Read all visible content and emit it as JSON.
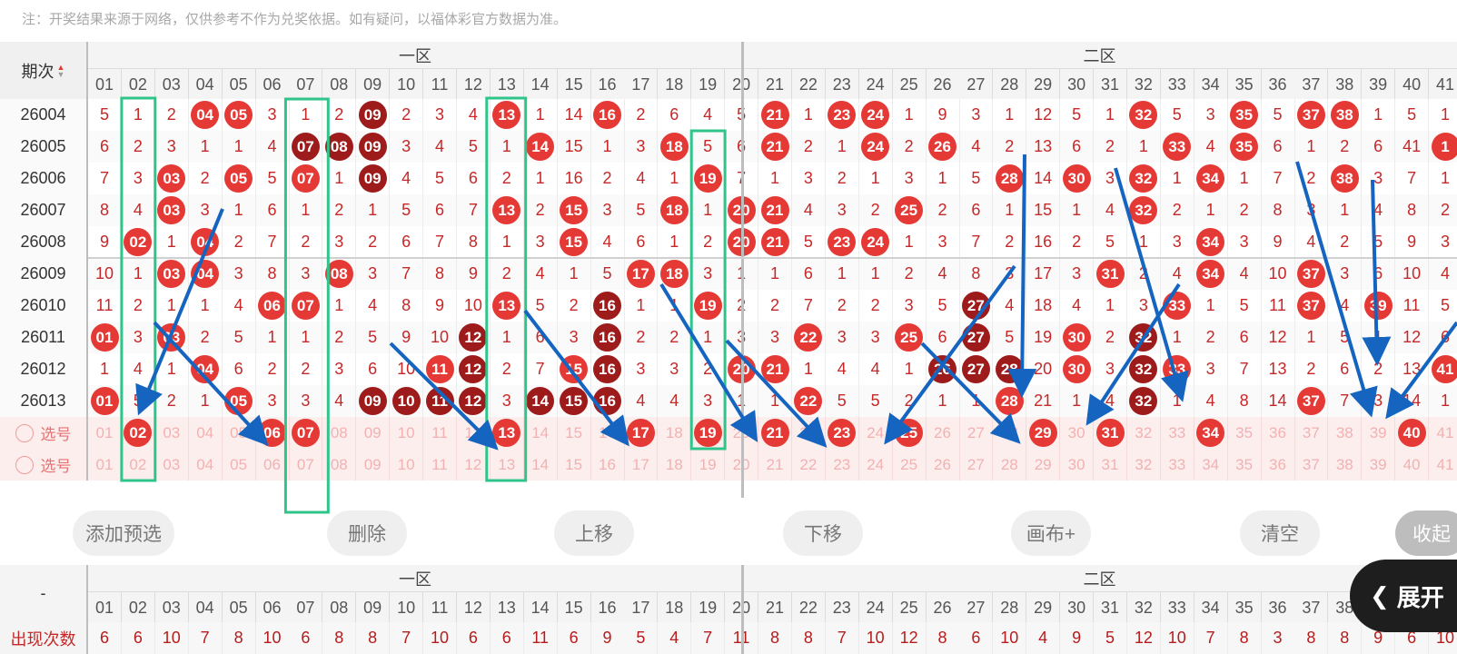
{
  "note": "注：开奖结果来源于网络，仅供参考不作为兑奖依据。如有疑问，以福体彩官方数据为准。",
  "header": {
    "issue_label": "期次",
    "zone1_label": "一区",
    "zone2_label": "二区",
    "numbers": [
      "01",
      "02",
      "03",
      "04",
      "05",
      "06",
      "07",
      "08",
      "09",
      "10",
      "11",
      "12",
      "13",
      "14",
      "15",
      "16",
      "17",
      "18",
      "19",
      "20",
      "21",
      "22",
      "23",
      "24",
      "25",
      "26",
      "27",
      "28",
      "29",
      "30",
      "31",
      "32",
      "33",
      "34",
      "35",
      "36",
      "37",
      "38",
      "39",
      "40",
      "41"
    ]
  },
  "rows": [
    {
      "issue": "26004",
      "cells": [
        "5",
        "1",
        "2",
        "04",
        "05",
        "3",
        "1",
        "2",
        "09",
        "2",
        "3",
        "4",
        "13",
        "1",
        "14",
        "16",
        "2",
        "6",
        "4",
        "5",
        "21",
        "1",
        "23",
        "24",
        "1",
        "9",
        "3",
        "1",
        "12",
        "5",
        "1",
        "32",
        "5",
        "3",
        "35",
        "5",
        "37",
        "38",
        "1",
        "5",
        "1"
      ],
      "balls": {
        "4": "red",
        "5": "red",
        "9": "dark",
        "13": "red",
        "16": "red",
        "21": "red",
        "23": "red",
        "24": "red",
        "32": "red",
        "35": "red",
        "37": "red",
        "38": "red"
      }
    },
    {
      "issue": "26005",
      "cells": [
        "6",
        "2",
        "3",
        "1",
        "1",
        "4",
        "07",
        "08",
        "09",
        "3",
        "4",
        "5",
        "1",
        "14",
        "15",
        "1",
        "3",
        "18",
        "5",
        "6",
        "21",
        "2",
        "1",
        "24",
        "2",
        "26",
        "4",
        "2",
        "13",
        "6",
        "2",
        "1",
        "33",
        "4",
        "35",
        "6",
        "1",
        "2",
        "6",
        "41",
        "1"
      ],
      "balls": {
        "7": "dark",
        "8": "dark",
        "9": "dark",
        "14": "red",
        "18": "red",
        "21": "red",
        "24": "red",
        "26": "red",
        "33": "red",
        "35": "red",
        "41": "red"
      }
    },
    {
      "issue": "26006",
      "cells": [
        "7",
        "3",
        "03",
        "2",
        "05",
        "5",
        "07",
        "1",
        "09",
        "4",
        "5",
        "6",
        "2",
        "1",
        "16",
        "2",
        "4",
        "1",
        "19",
        "7",
        "1",
        "3",
        "2",
        "1",
        "3",
        "1",
        "5",
        "28",
        "14",
        "30",
        "3",
        "32",
        "1",
        "34",
        "1",
        "7",
        "2",
        "38",
        "3",
        "7",
        "1"
      ],
      "balls": {
        "3": "red",
        "5": "red",
        "7": "red",
        "9": "dark",
        "19": "red",
        "28": "red",
        "30": "red",
        "32": "red",
        "34": "red",
        "38": "red"
      }
    },
    {
      "issue": "26007",
      "cells": [
        "8",
        "4",
        "03",
        "3",
        "1",
        "6",
        "1",
        "2",
        "1",
        "5",
        "6",
        "7",
        "13",
        "2",
        "15",
        "3",
        "5",
        "18",
        "1",
        "20",
        "21",
        "4",
        "3",
        "2",
        "25",
        "2",
        "6",
        "1",
        "15",
        "1",
        "4",
        "32",
        "2",
        "1",
        "2",
        "8",
        "3",
        "1",
        "4",
        "8",
        "2"
      ],
      "balls": {
        "3": "red",
        "13": "red",
        "15": "red",
        "18": "red",
        "20": "red",
        "21": "red",
        "25": "red",
        "32": "red"
      }
    },
    {
      "issue": "26008",
      "cells": [
        "9",
        "02",
        "1",
        "04",
        "2",
        "7",
        "2",
        "3",
        "2",
        "6",
        "7",
        "8",
        "1",
        "3",
        "15",
        "4",
        "6",
        "1",
        "2",
        "20",
        "21",
        "5",
        "23",
        "24",
        "1",
        "3",
        "7",
        "2",
        "16",
        "2",
        "5",
        "1",
        "3",
        "34",
        "3",
        "9",
        "4",
        "2",
        "5",
        "9",
        "3"
      ],
      "balls": {
        "2": "red",
        "4": "red",
        "15": "red",
        "20": "red",
        "21": "red",
        "23": "red",
        "24": "red",
        "34": "red"
      }
    },
    {
      "issue": "26009",
      "cells": [
        "10",
        "1",
        "03",
        "04",
        "3",
        "8",
        "3",
        "08",
        "3",
        "7",
        "8",
        "9",
        "2",
        "4",
        "1",
        "5",
        "17",
        "18",
        "3",
        "1",
        "1",
        "6",
        "1",
        "1",
        "2",
        "4",
        "8",
        "3",
        "17",
        "3",
        "31",
        "2",
        "4",
        "34",
        "4",
        "10",
        "37",
        "3",
        "6",
        "10",
        "4"
      ],
      "balls": {
        "3": "red",
        "4": "red",
        "8": "red",
        "17": "red",
        "18": "red",
        "31": "red",
        "34": "red",
        "37": "red"
      }
    },
    {
      "issue": "26010",
      "cells": [
        "11",
        "2",
        "1",
        "1",
        "4",
        "06",
        "07",
        "1",
        "4",
        "8",
        "9",
        "10",
        "13",
        "5",
        "2",
        "16",
        "1",
        "1",
        "19",
        "2",
        "2",
        "7",
        "2",
        "2",
        "3",
        "5",
        "27",
        "4",
        "18",
        "4",
        "1",
        "3",
        "33",
        "1",
        "5",
        "11",
        "37",
        "4",
        "39",
        "11",
        "5"
      ],
      "balls": {
        "6": "red",
        "7": "red",
        "13": "red",
        "16": "dark",
        "19": "red",
        "27": "dark",
        "33": "red",
        "37": "red",
        "39": "red"
      }
    },
    {
      "issue": "26011",
      "cells": [
        "01",
        "3",
        "03",
        "2",
        "5",
        "1",
        "1",
        "2",
        "5",
        "9",
        "10",
        "12",
        "1",
        "6",
        "3",
        "16",
        "2",
        "2",
        "1",
        "3",
        "3",
        "22",
        "3",
        "3",
        "25",
        "6",
        "27",
        "5",
        "19",
        "30",
        "2",
        "32",
        "1",
        "2",
        "6",
        "12",
        "1",
        "5",
        "1",
        "12",
        "6"
      ],
      "balls": {
        "1": "red",
        "3": "red",
        "12": "dark",
        "16": "dark",
        "22": "red",
        "25": "red",
        "27": "dark",
        "30": "red",
        "32": "dark"
      }
    },
    {
      "issue": "26012",
      "cells": [
        "1",
        "4",
        "1",
        "04",
        "6",
        "2",
        "2",
        "3",
        "6",
        "10",
        "11",
        "12",
        "2",
        "7",
        "15",
        "16",
        "3",
        "3",
        "2",
        "20",
        "21",
        "1",
        "4",
        "4",
        "1",
        "26",
        "27",
        "28",
        "20",
        "30",
        "3",
        "32",
        "33",
        "3",
        "7",
        "13",
        "2",
        "6",
        "2",
        "13",
        "41"
      ],
      "balls": {
        "4": "red",
        "11": "red",
        "12": "dark",
        "15": "red",
        "16": "dark",
        "20": "red",
        "21": "red",
        "26": "dark",
        "27": "dark",
        "28": "dark",
        "30": "red",
        "32": "dark",
        "33": "red",
        "41": "red"
      }
    },
    {
      "issue": "26013",
      "cells": [
        "01",
        "5",
        "2",
        "1",
        "05",
        "3",
        "3",
        "4",
        "09",
        "10",
        "11",
        "12",
        "3",
        "14",
        "15",
        "16",
        "4",
        "4",
        "3",
        "1",
        "1",
        "22",
        "5",
        "5",
        "2",
        "1",
        "1",
        "28",
        "21",
        "1",
        "4",
        "32",
        "1",
        "4",
        "8",
        "14",
        "37",
        "7",
        "3",
        "14",
        "1"
      ],
      "balls": {
        "1": "red",
        "5": "red",
        "9": "dark",
        "10": "dark",
        "11": "dark",
        "12": "dark",
        "14": "dark",
        "15": "dark",
        "16": "dark",
        "22": "red",
        "28": "red",
        "32": "dark",
        "37": "red"
      }
    }
  ],
  "pick_label": "选号",
  "pick_row1_selected": [
    "02",
    "06",
    "07",
    "13",
    "17",
    "19",
    "21",
    "23",
    "25",
    "29",
    "31",
    "34",
    "40"
  ],
  "buttons": {
    "add": "添加预选",
    "delete": "删除",
    "up": "上移",
    "down": "下移",
    "canvas": "画布+",
    "clear": "清空",
    "collapse": "收起",
    "expand": "展开"
  },
  "stats": {
    "dash": "-",
    "label": "出现次数",
    "counts": [
      "6",
      "6",
      "10",
      "7",
      "8",
      "10",
      "6",
      "8",
      "8",
      "7",
      "10",
      "6",
      "6",
      "11",
      "6",
      "9",
      "5",
      "4",
      "7",
      "11",
      "8",
      "8",
      "7",
      "10",
      "12",
      "8",
      "6",
      "10",
      "4",
      "9",
      "5",
      "12",
      "10",
      "7",
      "8",
      "3",
      "8",
      "8",
      "9",
      "6",
      "10"
    ]
  },
  "colors": {
    "red": "#e53935",
    "dark": "#9e1b1b",
    "annotation_arrow": "#1565c0",
    "annotation_box": "#2ec48a"
  }
}
